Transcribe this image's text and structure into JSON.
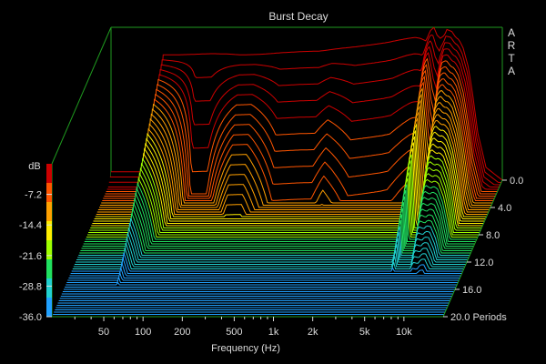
{
  "window": {
    "title": "Burst Decay",
    "brand": "ARTA"
  },
  "chart_data": {
    "type": "waterfall",
    "title": "Burst Decay",
    "xlabel": "Frequency (Hz)",
    "xscale": "log",
    "xlim": [
      20,
      20000
    ],
    "x_ticks": [
      {
        "value": 50,
        "label": "50"
      },
      {
        "value": 100,
        "label": "100"
      },
      {
        "value": 200,
        "label": "200"
      },
      {
        "value": 500,
        "label": "500"
      },
      {
        "value": 1000,
        "label": "1k"
      },
      {
        "value": 2000,
        "label": "2k"
      },
      {
        "value": 5000,
        "label": "5k"
      },
      {
        "value": 10000,
        "label": "10k"
      }
    ],
    "zlabel": "dB",
    "zlim": [
      -36,
      0
    ],
    "z_ticks": [
      "-7.2",
      "-14.4",
      "-21.6",
      "-28.8",
      "-36.0"
    ],
    "depth_label": "Periods",
    "depth_range": [
      0,
      20
    ],
    "depth_ticks": [
      "0.0",
      "4.0",
      "8.0",
      "12.0",
      "16.0",
      "20.0"
    ],
    "colorbar": [
      "#cc0000",
      "#ff5500",
      "#ffa000",
      "#ffee00",
      "#a0ff00",
      "#20e060",
      "#20d0d0",
      "#20a0ff"
    ],
    "grid": false,
    "profile_db": {
      "freq_hz": [
        40,
        45,
        50,
        60,
        80,
        120,
        160,
        200,
        260,
        300,
        400,
        600,
        800,
        1000,
        1200,
        1500,
        2000,
        2600,
        3000,
        3800,
        4300,
        4700,
        5200,
        5600,
        6000,
        6300,
        6700,
        7200,
        7500,
        8200,
        8800,
        9300,
        10000,
        11000,
        12000,
        13000,
        15000,
        20000
      ],
      "level_db": [
        -34,
        -30,
        -6.5,
        -6.5,
        -6.4,
        -6.2,
        -6.3,
        -6.5,
        -6.4,
        -6.3,
        -6.0,
        -5.7,
        -5.6,
        -5.2,
        -4.9,
        -4.6,
        -4.1,
        -3.6,
        -3.2,
        -2.6,
        -2.4,
        -2.6,
        -3.2,
        -0.8,
        0,
        -1.8,
        -2.6,
        -1.9,
        -0.5,
        -1.0,
        -2.4,
        -2.9,
        -4.8,
        -9.5,
        -17,
        -25,
        -33,
        -36
      ]
    },
    "decay_periods": {
      "freq_hz": [
        40,
        50,
        90,
        120,
        200,
        260,
        400,
        600,
        800,
        1000,
        1500,
        2000,
        3000,
        4500,
        5000,
        5400,
        5800,
        6000,
        6300,
        6700,
        7300,
        8000,
        9000,
        10000,
        11000,
        12000,
        15000,
        20000
      ],
      "periods": [
        14,
        16,
        2,
        2,
        5.5,
        5.5,
        3,
        3,
        3,
        3.6,
        2.6,
        2.6,
        2.6,
        3.1,
        3.2,
        10.5,
        11.5,
        6.8,
        5.0,
        4.1,
        9.0,
        11.5,
        12.2,
        13.5,
        14.5,
        16,
        17,
        18
      ]
    }
  }
}
